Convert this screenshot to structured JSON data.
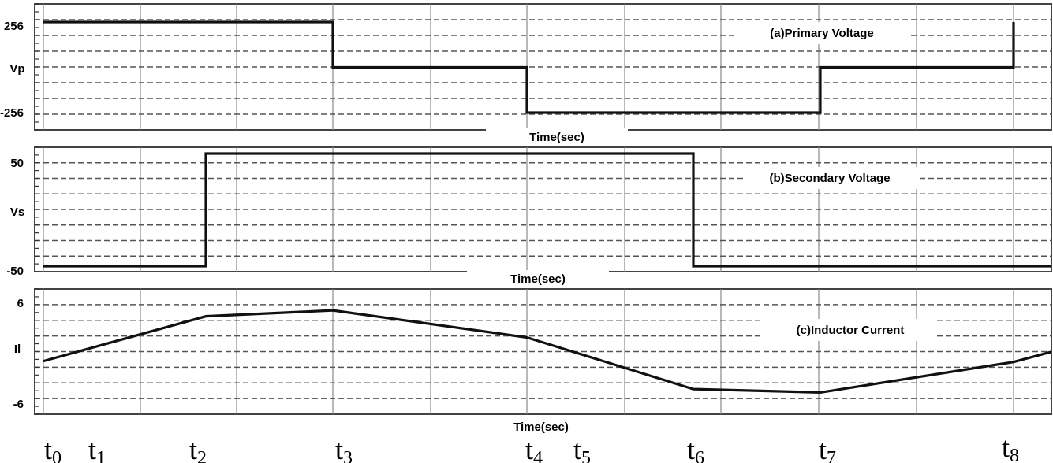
{
  "chart_data": [
    {
      "type": "line",
      "title": "(a)Primary Voltage",
      "xlabel": "Time(sec)",
      "ylabel": "Vp",
      "ytick_labels": [
        "256",
        "-256"
      ],
      "ylim": [
        -256,
        256
      ],
      "grid": true,
      "x": [
        "t0",
        "t3",
        "t3",
        "t4",
        "t4",
        "t7",
        "t7",
        "t8",
        "t8"
      ],
      "values": [
        256,
        256,
        0,
        0,
        -256,
        -256,
        0,
        0,
        256
      ]
    },
    {
      "type": "line",
      "title": "(b)Secondary Voltage",
      "xlabel": "Time(sec)",
      "ylabel": "Vs",
      "ytick_labels": [
        "50",
        "-50"
      ],
      "ylim": [
        -50,
        50
      ],
      "grid": true,
      "x": [
        "t0",
        "t2",
        "t2",
        "t6",
        "t6",
        "end"
      ],
      "values": [
        -50,
        -50,
        50,
        50,
        -50,
        -50
      ]
    },
    {
      "type": "line",
      "title": "(c)Inductor Current",
      "xlabel": "Time(sec)",
      "ylabel": "Il",
      "ytick_labels": [
        "6",
        "-6"
      ],
      "ylim": [
        -6,
        6
      ],
      "grid": true,
      "x": [
        "t0",
        "t2",
        "t3",
        "t4",
        "t6",
        "t7",
        "t8",
        "end"
      ],
      "values": [
        -1.5,
        3.8,
        4.5,
        1.3,
        -4.8,
        -5.2,
        -1.6,
        -0.4
      ]
    }
  ],
  "time_markers": [
    {
      "base": "t",
      "sub": "0"
    },
    {
      "base": "t",
      "sub": "1"
    },
    {
      "base": "t",
      "sub": "2"
    },
    {
      "base": "t",
      "sub": "3"
    },
    {
      "base": "t",
      "sub": "4"
    },
    {
      "base": "t",
      "sub": "5"
    },
    {
      "base": "t",
      "sub": "6"
    },
    {
      "base": "t",
      "sub": "7"
    },
    {
      "base": "t",
      "sub": "8"
    }
  ]
}
